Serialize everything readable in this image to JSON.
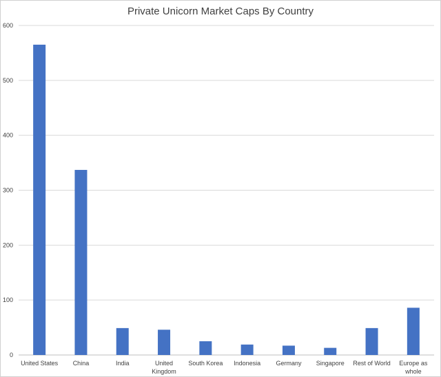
{
  "chart_data": {
    "type": "bar",
    "title": "Private Unicorn Market Caps By Country",
    "xlabel": "",
    "ylabel": "",
    "ylim": [
      0,
      600
    ],
    "yticks": [
      0,
      100,
      200,
      300,
      400,
      500,
      600
    ],
    "grid": true,
    "legend": "none",
    "bar_color": "#4472C4",
    "categories": [
      [
        "United States"
      ],
      [
        "China"
      ],
      [
        "India"
      ],
      [
        "United",
        "Kingdom"
      ],
      [
        "South Korea"
      ],
      [
        "Indonesia"
      ],
      [
        "Germany"
      ],
      [
        "Singapore"
      ],
      [
        "Rest of World"
      ],
      [
        "Europe as",
        "whole"
      ]
    ],
    "values": [
      565,
      337,
      49,
      46,
      25,
      19,
      17,
      13,
      49,
      86
    ]
  }
}
